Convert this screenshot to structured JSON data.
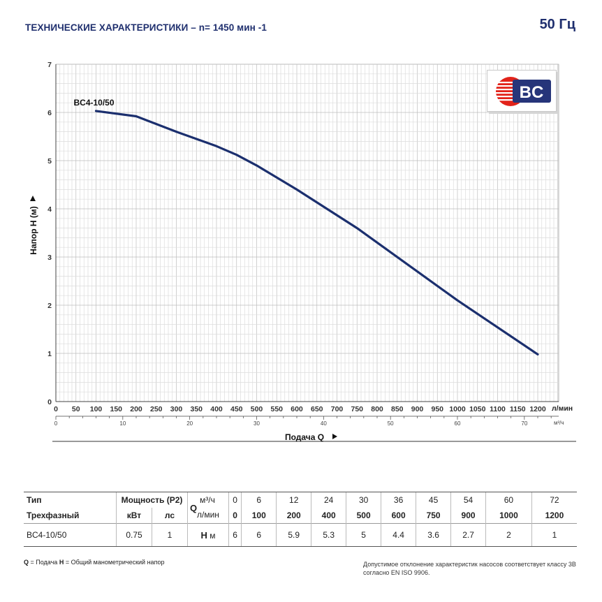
{
  "header": {
    "title": "ТЕХНИЧЕСКИЕ ХАРАКТЕРИСТИКИ – n= 1450 мин -1",
    "frequency": "50 Гц"
  },
  "logo": {
    "text": "BC",
    "colors": {
      "blue": "#26357a",
      "red": "#e2231a"
    }
  },
  "chart_data": {
    "type": "line",
    "ylabel": "Напор H (м)",
    "xlabel": "Подача Q",
    "x_unit": "л/мин",
    "x2_unit": "м³/ч",
    "ylim": [
      0,
      7
    ],
    "xlim": [
      0,
      1260
    ],
    "y_ticks": [
      "0",
      "1",
      "2",
      "3",
      "4",
      "5",
      "6",
      "7"
    ],
    "x_ticks": [
      "0",
      "50",
      "100",
      "150",
      "200",
      "250",
      "300",
      "350",
      "400",
      "450",
      "500",
      "550",
      "600",
      "650",
      "700",
      "750",
      "800",
      "850",
      "900",
      "950",
      "1000",
      "1050",
      "1100",
      "1150",
      "1200"
    ],
    "x2_ticks": [
      "0",
      "10",
      "20",
      "30",
      "40",
      "50",
      "60",
      "70"
    ],
    "grid": true,
    "series": [
      {
        "name": "BC4-10/50",
        "color": "#1b2f6e",
        "x": [
          100,
          200,
          300,
          400,
          450,
          500,
          600,
          750,
          900,
          1000,
          1200
        ],
        "y": [
          6.03,
          5.92,
          5.6,
          5.3,
          5.12,
          4.9,
          4.4,
          3.6,
          2.7,
          2.1,
          0.98
        ]
      }
    ]
  },
  "table": {
    "hdr_type": "Тип",
    "hdr_phase": "Трехфазный",
    "hdr_power": "Мощность (P2)",
    "hdr_kw": "кВт",
    "hdr_hp": "лс",
    "hdr_q": "Q",
    "hdr_q_m3": "м³/ч",
    "hdr_q_lmin": "л/мин",
    "hdr_h": "H",
    "hdr_h_unit": "м",
    "q_m3h": [
      "0",
      "6",
      "12",
      "24",
      "30",
      "36",
      "45",
      "54",
      "60",
      "72"
    ],
    "q_lmin": [
      "0",
      "100",
      "200",
      "400",
      "500",
      "600",
      "750",
      "900",
      "1000",
      "1200"
    ],
    "model": "BC4-10/50",
    "kw": "0.75",
    "hp": "1",
    "h": [
      "6",
      "6",
      "5.9",
      "5.3",
      "5",
      "4.4",
      "3.6",
      "2.7",
      "2",
      "1"
    ]
  },
  "footer": {
    "legend_q": "Q",
    "legend_q_text": " = Подача ",
    "legend_h": "H",
    "legend_h_text": " = Общий манометрический напор",
    "tolerance": "Допустимое отклонение характеристик насосов соответствует классу 3В согласно EN ISO 9906."
  }
}
